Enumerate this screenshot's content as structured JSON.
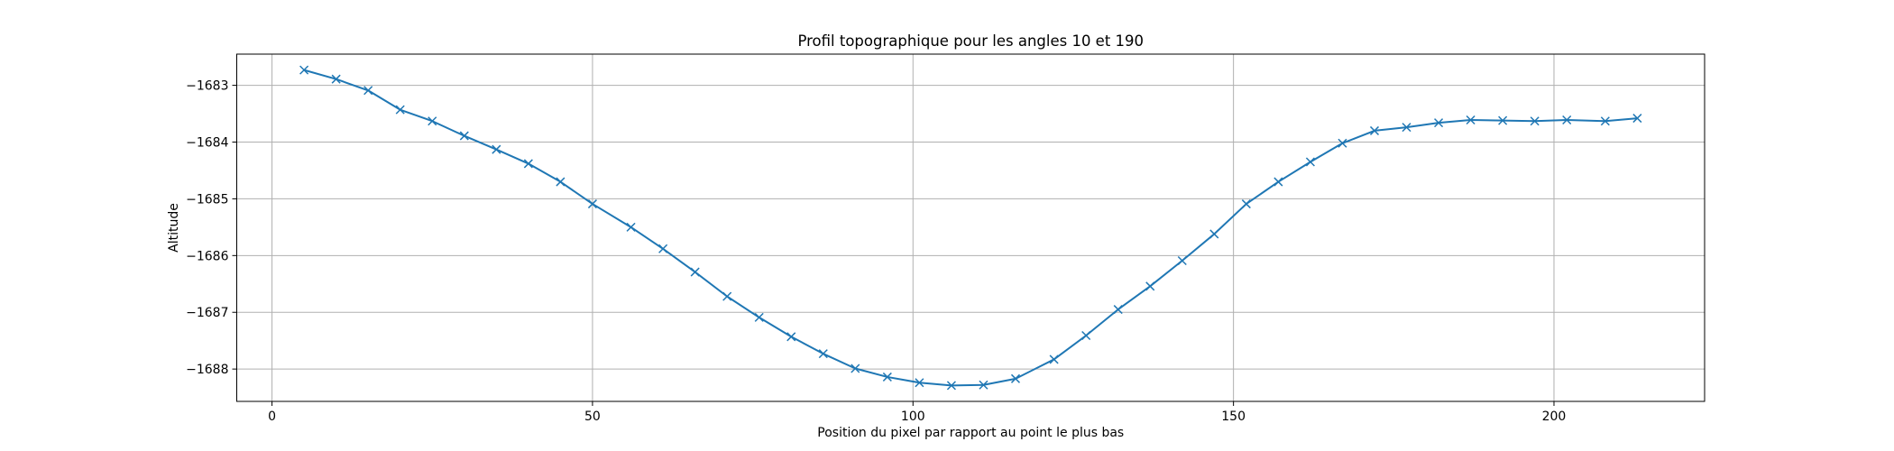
{
  "chart_data": {
    "type": "line",
    "title": "Profil topographique pour les angles 10 et 190",
    "xlabel": "Position du pixel par rapport au point le plus bas",
    "ylabel": "Altitude",
    "xlim": [
      -5.5,
      223.5
    ],
    "ylim": [
      -1688.57,
      -1682.45
    ],
    "xticks": [
      0,
      50,
      100,
      150,
      200
    ],
    "yticks": [
      -1688,
      -1687,
      -1686,
      -1685,
      -1684,
      -1683
    ],
    "grid": true,
    "color": "#1f77b4",
    "marker": "x",
    "series": [
      {
        "x": [
          5,
          10,
          15,
          20,
          25,
          30,
          35,
          40,
          45,
          50,
          56,
          61,
          66,
          71,
          76,
          81,
          86,
          91,
          96,
          101,
          106,
          111,
          116,
          122,
          127,
          132,
          137,
          142,
          147,
          152,
          157,
          162,
          167,
          172,
          177,
          182,
          187,
          192,
          197,
          202,
          208,
          213
        ],
        "y": [
          -1682.73,
          -1682.89,
          -1683.09,
          -1683.43,
          -1683.63,
          -1683.89,
          -1684.13,
          -1684.38,
          -1684.7,
          -1685.09,
          -1685.5,
          -1685.88,
          -1686.29,
          -1686.72,
          -1687.09,
          -1687.43,
          -1687.73,
          -1687.99,
          -1688.14,
          -1688.24,
          -1688.29,
          -1688.28,
          -1688.17,
          -1687.83,
          -1687.41,
          -1686.95,
          -1686.54,
          -1686.09,
          -1685.62,
          -1685.09,
          -1684.7,
          -1684.35,
          -1684.02,
          -1683.8,
          -1683.74,
          -1683.66,
          -1683.61,
          -1683.62,
          -1683.63,
          -1683.61,
          -1683.63,
          -1683.58
        ]
      }
    ]
  }
}
